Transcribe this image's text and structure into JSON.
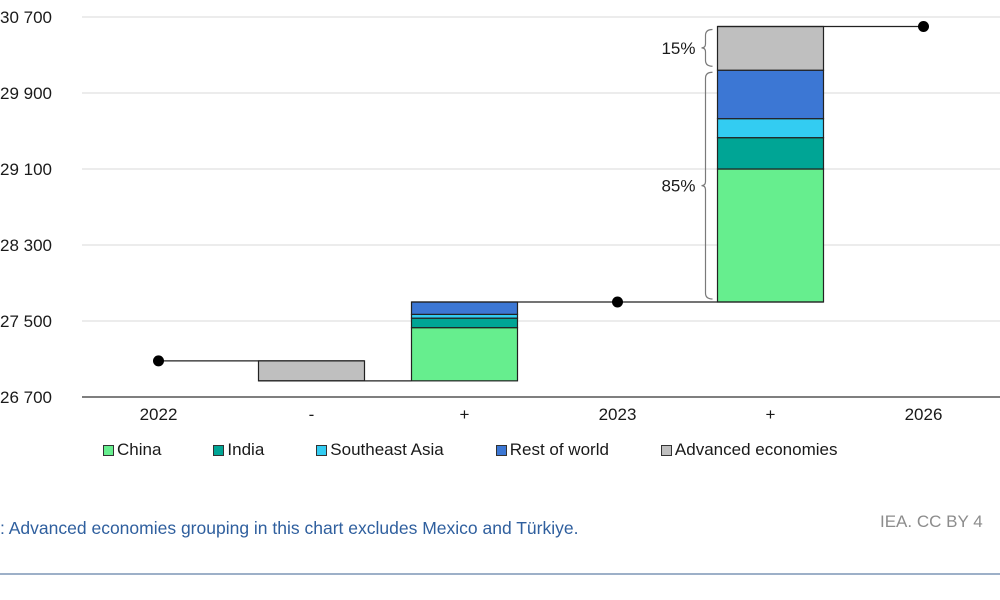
{
  "chart_data": {
    "type": "bar",
    "subtype": "waterfall-stacked",
    "title": "",
    "xlabel": "",
    "ylabel": "",
    "categories": [
      "2022",
      "-",
      "+",
      "2023",
      "+",
      "2026"
    ],
    "y_ticks": [
      "26 700",
      "27 500",
      "28 300",
      "29 100",
      "29 900",
      "30 700"
    ],
    "ylim": [
      26700,
      30700
    ],
    "grid": true,
    "totals": [
      {
        "category": "2022",
        "value": 27080
      },
      {
        "category": "2023",
        "value": 27700
      },
      {
        "category": "2026",
        "value": 30600
      }
    ],
    "decrease_step": {
      "category": "-",
      "segments": [
        {
          "series": "Advanced economies",
          "value": -210
        }
      ]
    },
    "increase_steps": [
      {
        "category": "+",
        "base": 26870,
        "segments": [
          {
            "series": "China",
            "value": 560
          },
          {
            "series": "India",
            "value": 100
          },
          {
            "series": "Southeast Asia",
            "value": 40
          },
          {
            "series": "Rest of world",
            "value": 130
          }
        ]
      },
      {
        "category": "+",
        "base": 27700,
        "segments": [
          {
            "series": "China",
            "value": 1400
          },
          {
            "series": "India",
            "value": 330
          },
          {
            "series": "Southeast Asia",
            "value": 200
          },
          {
            "series": "Rest of world",
            "value": 510
          },
          {
            "series": "Advanced economies",
            "value": 460
          }
        ]
      }
    ],
    "series": [
      {
        "name": "China",
        "color": "#66ee8e"
      },
      {
        "name": "India",
        "color": "#00a595"
      },
      {
        "name": "Southeast Asia",
        "color": "#33ccf2"
      },
      {
        "name": "Rest of world",
        "color": "#3c77d4"
      },
      {
        "name": "Advanced economies",
        "color": "#bfbfbf"
      }
    ],
    "annotations": [
      {
        "text": "15%",
        "from": 30150,
        "to": 30600
      },
      {
        "text": "85%",
        "from": 27700,
        "to": 30150
      }
    ],
    "legend_position": "bottom"
  },
  "note": ": Advanced economies grouping in this chart excludes Mexico and Türkiye.",
  "credit": "IEA. CC BY 4"
}
